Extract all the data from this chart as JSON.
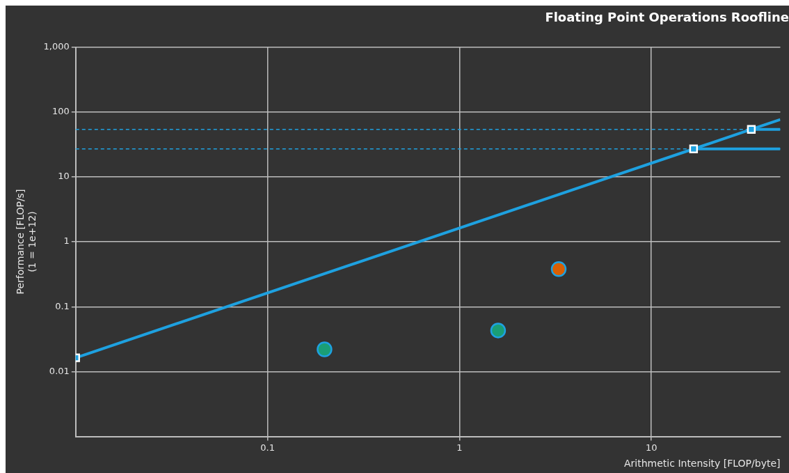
{
  "chart_data": {
    "type": "line",
    "title": "Floating Point Operations Roofline",
    "xlabel": "Arithmetic Intensity [FLOP/byte]",
    "ylabel": "Performance [FLOP/s]\n(1 = 1e+12)",
    "log": "xy",
    "grid": true,
    "legend": false,
    "xlim": [
      0.01,
      47
    ],
    "xticks": [
      0.1,
      1,
      10
    ],
    "ylim": [
      0.001,
      1000
    ],
    "yticks": [
      0.01,
      0.1,
      1,
      10,
      100,
      {
        "value": 1000,
        "label": "1,000"
      }
    ],
    "series": [
      {
        "color": "#1ea1e0",
        "marker": "square",
        "x": [
          0.01,
          16.6,
          33.2,
          47
        ],
        "values": [
          0.0163,
          27,
          54,
          76.6
        ]
      },
      {
        "color": "#1ea1e0",
        "marker": "none",
        "x": [
          16.6,
          47
        ],
        "values": [
          27,
          27
        ]
      },
      {
        "color": "#1ea1e0",
        "marker": "none",
        "x": [
          33.2,
          47
        ],
        "values": [
          54,
          54
        ]
      },
      {
        "type": "scatter",
        "marker": "circle",
        "x": [
          0.198,
          1.59,
          3.29
        ],
        "values": [
          0.022,
          0.043,
          0.38
        ],
        "colors": [
          "#1a9e76",
          "#1a9e76",
          "#d95f02"
        ]
      }
    ],
    "ref_lines": [
      {
        "axis": "y",
        "value": 27,
        "color": "#1ea1e0",
        "line_style": "dashed"
      },
      {
        "axis": "y",
        "value": 54,
        "color": "#1ea1e0",
        "line_style": "dashed"
      }
    ]
  }
}
